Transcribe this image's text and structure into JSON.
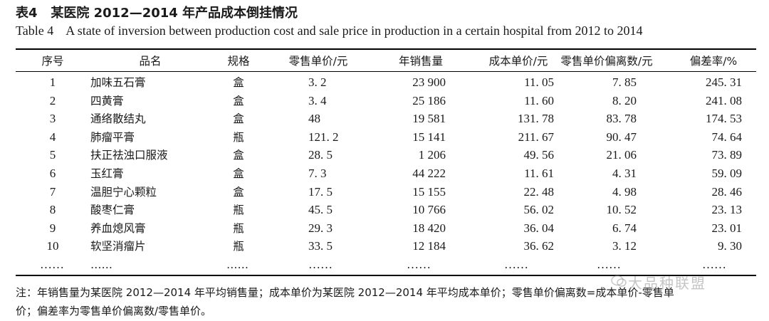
{
  "caption": {
    "cn": "表4   某医院 2012—2014 年产品成本倒挂情况",
    "en": "Table 4    A state of inversion between production cost and sale price in production in a certain hospital from 2012 to 2014"
  },
  "table": {
    "headers": [
      "序号",
      "品名",
      "规格",
      "零售单价/元",
      "年销售量",
      "成本单价/元",
      "零售单价偏离数/元",
      "偏差率/%"
    ],
    "rows": [
      [
        "1",
        "加味五石膏",
        "盒",
        "3. 2",
        "23 900",
        "11. 05",
        "7. 85",
        "245. 31"
      ],
      [
        "2",
        "四黄膏",
        "盒",
        "3. 4",
        "25 186",
        "11. 60",
        "8. 20",
        "241. 08"
      ],
      [
        "3",
        "通络散结丸",
        "盒",
        "48",
        "19 581",
        "131. 78",
        "83. 78",
        "174. 53"
      ],
      [
        "4",
        "肺瘤平膏",
        "瓶",
        "121. 2",
        "15 141",
        "211. 67",
        "90. 47",
        "74. 64"
      ],
      [
        "5",
        "扶正祛浊口服液",
        "盒",
        "28. 5",
        "1 206",
        "49. 56",
        "21. 06",
        "73. 89"
      ],
      [
        "6",
        "玉红膏",
        "盒",
        "7. 3",
        "44 222",
        "11. 61",
        "4. 31",
        "59. 09"
      ],
      [
        "7",
        "温胆宁心颗粒",
        "盒",
        "17. 5",
        "15 155",
        "22. 48",
        "4. 98",
        "28. 46"
      ],
      [
        "8",
        "酸枣仁膏",
        "瓶",
        "45. 5",
        "10 766",
        "56. 02",
        "10. 52",
        "23. 13"
      ],
      [
        "9",
        "养血熄风膏",
        "瓶",
        "29. 3",
        "18 420",
        "36. 04",
        "6. 74",
        "23. 01"
      ],
      [
        "10",
        "软坚消瘤片",
        "瓶",
        "33. 5",
        "12 184",
        "36. 62",
        "3. 12",
        "9. 30"
      ],
      [
        "……",
        "……",
        "……",
        "……",
        "……",
        "……",
        "……",
        "……"
      ]
    ]
  },
  "note": {
    "line1": "注：年销售量为某医院 2012—2014 年平均销售量；成本单价为某医院 2012—2014 年平均成本单价；零售单价偏离数=成本单价-零售单",
    "line2": "价；偏差率为零售单价偏离数/零售单价。"
  },
  "watermark": "大品种联盟",
  "colors": {
    "text": "#1a1a1a",
    "rule": "#000000",
    "watermark": "#969696"
  }
}
